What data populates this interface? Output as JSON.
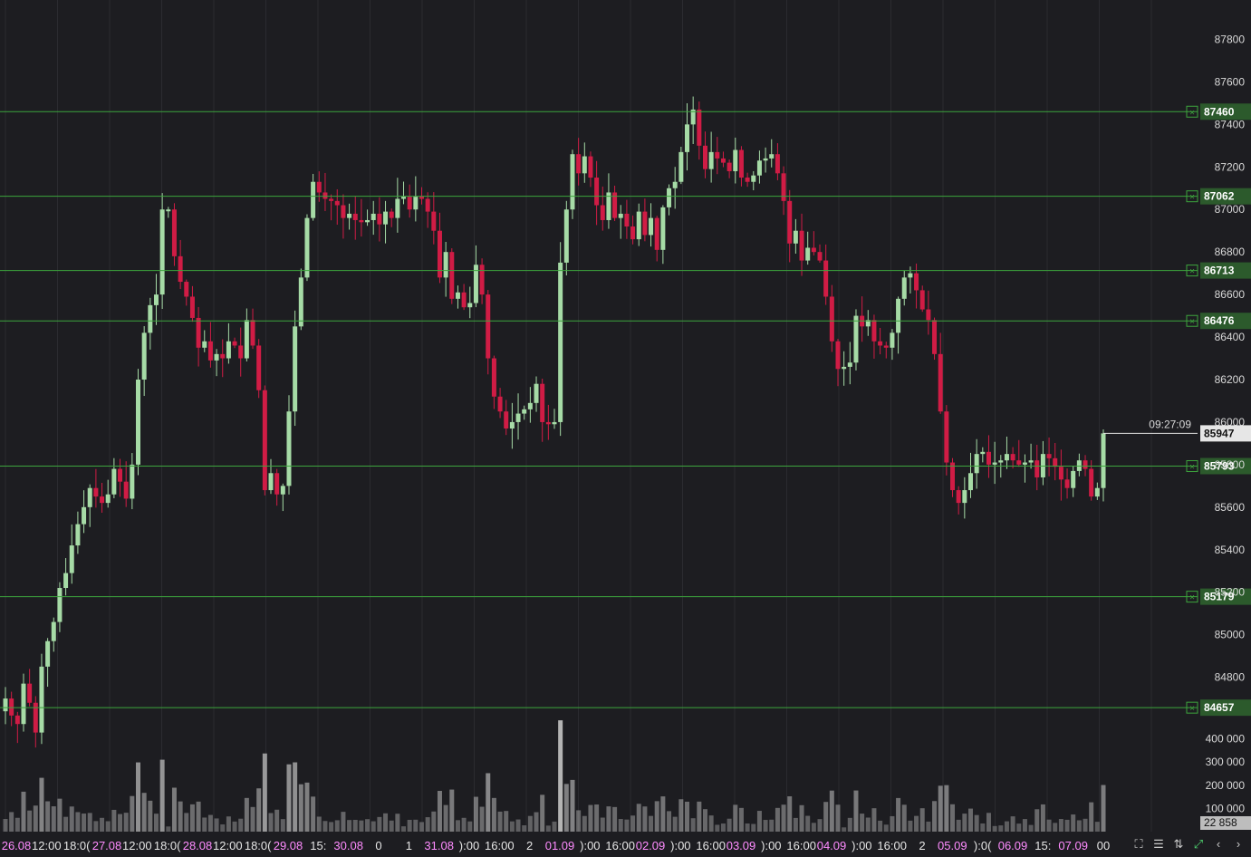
{
  "chart_data": {
    "type": "candlestick",
    "price_axis": {
      "ylim": [
        84500,
        87900
      ],
      "ticks": [
        "87800",
        "87600",
        "87400",
        "87200",
        "87000",
        "86800",
        "86600",
        "86400",
        "86200",
        "86000",
        "85800",
        "85600",
        "85400",
        "85200",
        "85000",
        "84800"
      ]
    },
    "volume_axis": {
      "ylim": [
        0,
        500000
      ],
      "ticks": [
        "400 000",
        "300 000",
        "200 000",
        "100 000"
      ],
      "current_label": "22 858"
    },
    "time_axis": [
      {
        "text": "26.08",
        "kind": "date"
      },
      {
        "text": "12:00",
        "kind": "time"
      },
      {
        "text": "18:0(",
        "kind": "time"
      },
      {
        "text": "27.08",
        "kind": "date"
      },
      {
        "text": "12:00",
        "kind": "time"
      },
      {
        "text": "18:0(",
        "kind": "time"
      },
      {
        "text": "28.08",
        "kind": "date"
      },
      {
        "text": "12:00",
        "kind": "time"
      },
      {
        "text": "18:0(",
        "kind": "time"
      },
      {
        "text": "29.08",
        "kind": "date"
      },
      {
        "text": "15:",
        "kind": "time"
      },
      {
        "text": "30.08",
        "kind": "date"
      },
      {
        "text": "0",
        "kind": "time"
      },
      {
        "text": "1",
        "kind": "time"
      },
      {
        "text": "31.08",
        "kind": "date"
      },
      {
        "text": "):00",
        "kind": "time"
      },
      {
        "text": "16:00",
        "kind": "time"
      },
      {
        "text": "2",
        "kind": "time"
      },
      {
        "text": "01.09",
        "kind": "date"
      },
      {
        "text": "):00",
        "kind": "time"
      },
      {
        "text": "16:00",
        "kind": "time"
      },
      {
        "text": "02.09",
        "kind": "date"
      },
      {
        "text": "):00",
        "kind": "time"
      },
      {
        "text": "16:00",
        "kind": "time"
      },
      {
        "text": "03.09",
        "kind": "date"
      },
      {
        "text": "):00",
        "kind": "time"
      },
      {
        "text": "16:00",
        "kind": "time"
      },
      {
        "text": "04.09",
        "kind": "date"
      },
      {
        "text": "):00",
        "kind": "time"
      },
      {
        "text": "16:00",
        "kind": "time"
      },
      {
        "text": "2",
        "kind": "time"
      },
      {
        "text": "05.09",
        "kind": "date"
      },
      {
        "text": "):0(",
        "kind": "time"
      },
      {
        "text": "06.09",
        "kind": "date"
      },
      {
        "text": "15:",
        "kind": "time"
      },
      {
        "text": "07.09",
        "kind": "date"
      },
      {
        "text": "00",
        "kind": "time"
      }
    ],
    "levels": [
      {
        "price": 87460,
        "label": "87460"
      },
      {
        "price": 87062,
        "label": "87062"
      },
      {
        "price": 86713,
        "label": "86713"
      },
      {
        "price": 86476,
        "label": "86476"
      },
      {
        "price": 85793,
        "label": "85793"
      },
      {
        "price": 85179,
        "label": "85179"
      },
      {
        "price": 84657,
        "label": "84657"
      }
    ],
    "current": {
      "price": 85947,
      "label": "85947",
      "countdown": "09:27:09"
    },
    "colors": {
      "up": "#a6dba6",
      "down": "#d01c45",
      "level": "#3da53d",
      "volume": "#bdbdbd",
      "background": "#1d1d21",
      "grid": "#2b2b30"
    },
    "closes": [
      84700,
      84620,
      84580,
      84770,
      84680,
      84540,
      84850,
      84970,
      85060,
      85220,
      85290,
      85420,
      85520,
      85600,
      85690,
      85650,
      85620,
      85660,
      85780,
      85720,
      85640,
      85800,
      86200,
      86420,
      86550,
      86600,
      87000,
      87000,
      86780,
      86660,
      86590,
      86490,
      86350,
      86380,
      86290,
      86320,
      86300,
      86380,
      86360,
      86300,
      86480,
      86360,
      86150,
      85680,
      85760,
      85660,
      85700,
      86050,
      86450,
      86680,
      86960,
      87130,
      87080,
      87050,
      87040,
      87020,
      86960,
      86980,
      86950,
      86940,
      86950,
      86980,
      86930,
      86990,
      86960,
      87050,
      87060,
      87000,
      87060,
      87050,
      86990,
      86900,
      86680,
      86800,
      86580,
      86610,
      86540,
      86560,
      86740,
      86600,
      86300,
      86120,
      86050,
      85970,
      86000,
      86040,
      86060,
      86090,
      86180,
      86000,
      85990,
      86000,
      86750,
      87000,
      87260,
      87170,
      87250,
      87150,
      87020,
      86950,
      87080,
      86960,
      86980,
      86920,
      86860,
      86990,
      86880,
      86960,
      86810,
      87010,
      87100,
      87130,
      87270,
      87400,
      87470,
      87300,
      87190,
      87270,
      87240,
      87220,
      87180,
      87280,
      87150,
      87130,
      87160,
      87230,
      87240,
      87260,
      87170,
      87040,
      86840,
      86900,
      86760,
      86820,
      86800,
      86760,
      86590,
      86380,
      86250,
      86260,
      86280,
      86500,
      86450,
      86480,
      86380,
      86360,
      86350,
      86420,
      86580,
      86680,
      86700,
      86620,
      86530,
      86480,
      86320,
      86050,
      85810,
      85680,
      85620,
      85680,
      85760,
      85850,
      85860,
      85800,
      85810,
      85820,
      85850,
      85820,
      85800,
      85810,
      85820,
      85740,
      85850,
      85830,
      85790,
      85730,
      85690,
      85770,
      85820,
      85780,
      85650,
      85690,
      85947
    ]
  },
  "toolbar": {
    "fullscreen_icon": "fullscreen-icon",
    "settings_icon": "sliders-icon",
    "scale_icon": "vertical-scale-icon",
    "fit_icon": "fit-screen-icon",
    "prev_icon": "chevron-left-icon",
    "next_icon": "chevron-right-icon"
  }
}
